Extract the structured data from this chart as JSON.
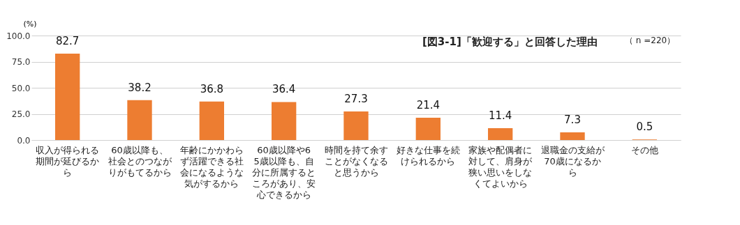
{
  "chart_data": {
    "type": "bar",
    "title": "[図3-1]「歓迎する」と回答した理由",
    "ylabel": "(%)",
    "annotations": [
      "（ n =220）"
    ],
    "categories": [
      "収入が得られる期間が延びるから",
      "60歳以降も、社会とのつながりがもてるから",
      "年齢にかかわらず活躍できる社会になるような気がするから",
      "60歳以降や65歳以降も、自分に所属するところがあり、安心できるから",
      "時間を持て余すことがなくなると思うから",
      "好きな仕事を続けられるから",
      "家族や配偶者に対して、肩身が狭い思いをしなくてよいから",
      "退職金の支給が70歳になるから",
      "その他"
    ],
    "values": [
      82.7,
      38.2,
      36.8,
      36.4,
      27.3,
      21.4,
      11.4,
      7.3,
      0.5
    ],
    "color": "#ed7d31",
    "ylim": [
      0,
      100
    ],
    "yticks": [
      {
        "value": 0,
        "label": "0.0"
      },
      {
        "value": 25,
        "label": "25.0"
      },
      {
        "value": 50,
        "label": "50.0"
      },
      {
        "value": 75,
        "label": "75.0"
      },
      {
        "value": 100,
        "label": "100.0"
      }
    ],
    "grid": "y",
    "data_labels": true
  }
}
